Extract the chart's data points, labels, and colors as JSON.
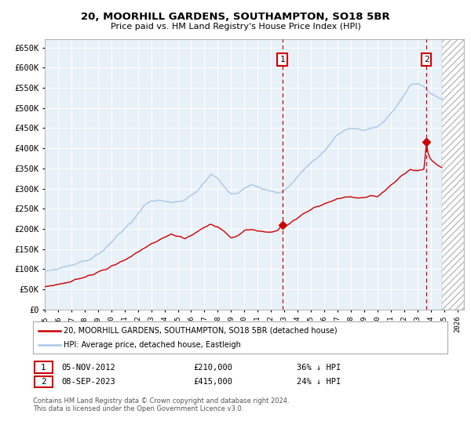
{
  "title": "20, MOORHILL GARDENS, SOUTHAMPTON, SO18 5BR",
  "subtitle": "Price paid vs. HM Land Registry's House Price Index (HPI)",
  "hpi_color": "#A8C8E8",
  "price_color": "#CC0000",
  "background_color": "#E8F0F8",
  "ylim": [
    0,
    670000
  ],
  "yticks": [
    0,
    50000,
    100000,
    150000,
    200000,
    250000,
    300000,
    350000,
    400000,
    450000,
    500000,
    550000,
    600000,
    650000
  ],
  "xlim_start": 1995.0,
  "xlim_end": 2026.5,
  "xticks": [
    1995,
    1996,
    1997,
    1998,
    1999,
    2000,
    2001,
    2002,
    2003,
    2004,
    2005,
    2006,
    2007,
    2008,
    2009,
    2010,
    2011,
    2012,
    2013,
    2014,
    2015,
    2016,
    2017,
    2018,
    2019,
    2020,
    2021,
    2022,
    2023,
    2024,
    2025,
    2026
  ],
  "marker1_x": 2012.85,
  "marker1_y": 210000,
  "marker2_x": 2023.68,
  "marker2_y": 415000,
  "marker1_date": "05-NOV-2012",
  "marker1_price": "£210,000",
  "marker1_hpi": "36% ↓ HPI",
  "marker2_date": "08-SEP-2023",
  "marker2_price": "£415,000",
  "marker2_hpi": "24% ↓ HPI",
  "legend_line1": "20, MOORHILL GARDENS, SOUTHAMPTON, SO18 5BR (detached house)",
  "legend_line2": "HPI: Average price, detached house, Eastleigh",
  "footnote": "Contains HM Land Registry data © Crown copyright and database right 2024.\nThis data is licensed under the Open Government Licence v3.0.",
  "hatch_start": 2024.83
}
